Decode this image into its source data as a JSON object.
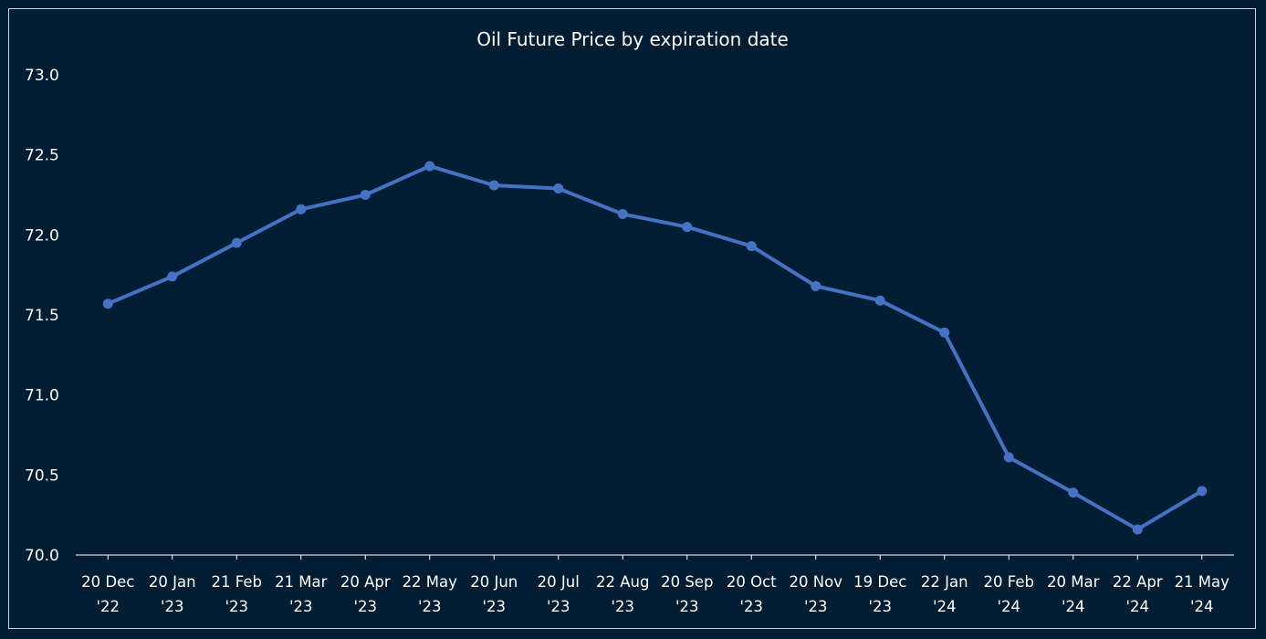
{
  "chart_data": {
    "type": "line",
    "title": "Oil Future Price by expiration date",
    "xlabel": "",
    "ylabel": "",
    "ylim": [
      70.0,
      73.0
    ],
    "yticks": [
      "70.0",
      "70.5",
      "71.0",
      "71.5",
      "72.0",
      "72.5",
      "73.0"
    ],
    "grid": false,
    "legend": "none",
    "categories": [
      [
        "20 Dec",
        "'22"
      ],
      [
        "20 Jan",
        "'23"
      ],
      [
        "21 Feb",
        "'23"
      ],
      [
        "21 Mar",
        "'23"
      ],
      [
        "20 Apr",
        "'23"
      ],
      [
        "22 May",
        "'23"
      ],
      [
        "20 Jun",
        "'23"
      ],
      [
        "20 Jul",
        "'23"
      ],
      [
        "22 Aug",
        "'23"
      ],
      [
        "20 Sep",
        "'23"
      ],
      [
        "20 Oct",
        "'23"
      ],
      [
        "20 Nov",
        "'23"
      ],
      [
        "19 Dec",
        "'23"
      ],
      [
        "22 Jan",
        "'24"
      ],
      [
        "20 Feb",
        "'24"
      ],
      [
        "20 Mar",
        "'24"
      ],
      [
        "22 Apr",
        "'24"
      ],
      [
        "21 May",
        "'24"
      ]
    ],
    "series": [
      {
        "values": [
          71.57,
          71.74,
          71.95,
          72.16,
          72.25,
          72.43,
          72.31,
          72.29,
          72.13,
          72.05,
          71.93,
          71.68,
          71.59,
          71.39,
          70.61,
          70.39,
          70.16,
          70.4
        ]
      }
    ],
    "colors": {
      "background": "#001d33",
      "line": "#4472c4",
      "text": "#ffffff",
      "axis": "#ffffff",
      "border": "#c9d3de"
    }
  }
}
